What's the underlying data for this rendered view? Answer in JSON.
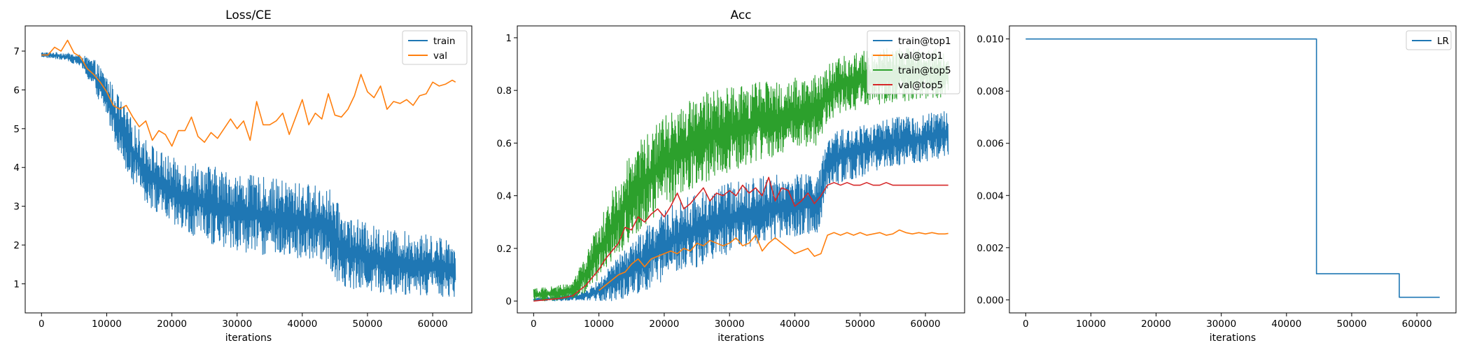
{
  "colors": {
    "c0": "#1f77b4",
    "c1": "#ff7f0e",
    "c2": "#2ca02c",
    "c3": "#d62728"
  },
  "chart_data": [
    {
      "type": "line",
      "title": "Loss/CE",
      "xlabel": "iterations",
      "ylabel": "",
      "xlim": [
        -2500,
        66000
      ],
      "ylim": [
        0.25,
        7.65
      ],
      "xticks": [
        0,
        10000,
        20000,
        30000,
        40000,
        50000,
        60000
      ],
      "yticks": [
        1,
        2,
        3,
        4,
        5,
        6,
        7
      ],
      "legend": "top-right",
      "grid": false,
      "series": [
        {
          "name": "train",
          "color": "#1f77b4",
          "style": "noisy-band",
          "x": [
            0,
            2000,
            4000,
            6000,
            8000,
            10000,
            12000,
            14000,
            16000,
            18000,
            20000,
            22000,
            24000,
            26000,
            28000,
            30000,
            32000,
            34000,
            36000,
            38000,
            40000,
            42000,
            44000,
            44600,
            46000,
            48000,
            50000,
            52000,
            54000,
            56000,
            58000,
            60000,
            62000,
            63500
          ],
          "upper": [
            6.97,
            6.97,
            6.95,
            6.9,
            6.8,
            6.4,
            5.8,
            5.2,
            4.75,
            4.45,
            4.25,
            4.2,
            4.15,
            4.05,
            3.95,
            3.85,
            3.8,
            3.75,
            3.7,
            3.65,
            3.6,
            3.55,
            3.5,
            3.35,
            2.9,
            2.7,
            2.55,
            2.45,
            2.4,
            2.35,
            2.3,
            2.25,
            2.2,
            2.1
          ],
          "lower": [
            6.85,
            6.8,
            6.75,
            6.6,
            6.0,
            5.3,
            4.3,
            3.6,
            3.1,
            2.75,
            2.45,
            2.25,
            2.1,
            2.0,
            1.9,
            1.85,
            1.8,
            1.75,
            1.7,
            1.65,
            1.6,
            1.55,
            1.5,
            1.2,
            0.95,
            0.85,
            0.8,
            0.75,
            0.72,
            0.7,
            0.7,
            0.68,
            0.67,
            0.66
          ]
        },
        {
          "name": "val",
          "color": "#ff7f0e",
          "x": [
            0,
            1000,
            2000,
            3000,
            4000,
            5000,
            6000,
            7000,
            8000,
            9000,
            10000,
            11000,
            12000,
            13000,
            14000,
            15000,
            16000,
            17000,
            18000,
            19000,
            20000,
            21000,
            22000,
            23000,
            24000,
            25000,
            26000,
            27000,
            28000,
            29000,
            30000,
            31000,
            32000,
            33000,
            34000,
            35000,
            36000,
            37000,
            38000,
            39000,
            40000,
            41000,
            42000,
            43000,
            44000,
            45000,
            46000,
            47000,
            48000,
            49000,
            50000,
            51000,
            52000,
            53000,
            54000,
            55000,
            56000,
            57000,
            58000,
            59000,
            60000,
            61000,
            62000,
            63000,
            63500
          ],
          "y": [
            6.9,
            6.9,
            7.1,
            7.0,
            7.28,
            6.95,
            6.85,
            6.55,
            6.4,
            6.2,
            5.95,
            5.6,
            5.5,
            5.6,
            5.3,
            5.05,
            5.2,
            4.7,
            4.95,
            4.85,
            4.55,
            4.95,
            4.95,
            5.3,
            4.8,
            4.65,
            4.9,
            4.75,
            5.0,
            5.25,
            5.0,
            5.2,
            4.7,
            5.7,
            5.1,
            5.1,
            5.2,
            5.4,
            4.85,
            5.3,
            5.75,
            5.1,
            5.4,
            5.25,
            5.9,
            5.35,
            5.3,
            5.5,
            5.85,
            6.4,
            5.95,
            5.8,
            6.1,
            5.5,
            5.7,
            5.65,
            5.75,
            5.6,
            5.85,
            5.9,
            6.2,
            6.1,
            6.15,
            6.25,
            6.2
          ]
        }
      ]
    },
    {
      "type": "line",
      "title": "Acc",
      "xlabel": "iterations",
      "ylabel": "",
      "xlim": [
        -2500,
        66000
      ],
      "ylim": [
        -0.045,
        1.045
      ],
      "xticks": [
        0,
        10000,
        20000,
        30000,
        40000,
        50000,
        60000
      ],
      "yticks": [
        0.0,
        0.2,
        0.4,
        0.6,
        0.8,
        1.0
      ],
      "legend": "top-right",
      "grid": false,
      "series": [
        {
          "name": "train@top1",
          "color": "#1f77b4",
          "style": "noisy-band",
          "x": [
            0,
            4000,
            8000,
            10000,
            12000,
            14000,
            16000,
            18000,
            20000,
            22000,
            24000,
            26000,
            28000,
            30000,
            32000,
            34000,
            36000,
            38000,
            40000,
            42000,
            44000,
            44600,
            46000,
            48000,
            50000,
            52000,
            54000,
            56000,
            58000,
            60000,
            62000,
            63500
          ],
          "upper": [
            0.01,
            0.02,
            0.04,
            0.08,
            0.14,
            0.2,
            0.25,
            0.3,
            0.34,
            0.38,
            0.4,
            0.42,
            0.44,
            0.45,
            0.46,
            0.47,
            0.48,
            0.48,
            0.48,
            0.49,
            0.5,
            0.6,
            0.64,
            0.66,
            0.67,
            0.68,
            0.69,
            0.7,
            0.7,
            0.71,
            0.72,
            0.72
          ],
          "lower": [
            0.0,
            0.0,
            0.0,
            0.0,
            0.0,
            0.01,
            0.03,
            0.05,
            0.08,
            0.1,
            0.12,
            0.14,
            0.16,
            0.18,
            0.2,
            0.21,
            0.22,
            0.23,
            0.24,
            0.25,
            0.26,
            0.4,
            0.44,
            0.46,
            0.47,
            0.49,
            0.5,
            0.51,
            0.52,
            0.53,
            0.54,
            0.55
          ]
        },
        {
          "name": "val@top1",
          "color": "#ff7f0e",
          "x": [
            10000,
            11000,
            12000,
            13000,
            14000,
            15000,
            16000,
            17000,
            18000,
            19000,
            20000,
            21000,
            22000,
            23000,
            24000,
            25000,
            26000,
            27000,
            28000,
            29000,
            30000,
            31000,
            32000,
            33000,
            34000,
            35000,
            36000,
            37000,
            38000,
            39000,
            40000,
            41000,
            42000,
            43000,
            44000,
            45000,
            46000,
            47000,
            48000,
            49000,
            50000,
            51000,
            52000,
            53000,
            54000,
            55000,
            56000,
            57000,
            58000,
            59000,
            60000,
            61000,
            62000,
            63000,
            63500
          ],
          "y": [
            0.04,
            0.06,
            0.08,
            0.1,
            0.11,
            0.14,
            0.16,
            0.13,
            0.16,
            0.17,
            0.18,
            0.19,
            0.18,
            0.2,
            0.19,
            0.22,
            0.21,
            0.23,
            0.22,
            0.21,
            0.22,
            0.24,
            0.21,
            0.22,
            0.25,
            0.19,
            0.22,
            0.24,
            0.22,
            0.2,
            0.18,
            0.19,
            0.2,
            0.17,
            0.18,
            0.25,
            0.26,
            0.25,
            0.26,
            0.25,
            0.26,
            0.25,
            0.255,
            0.26,
            0.25,
            0.255,
            0.27,
            0.26,
            0.255,
            0.26,
            0.255,
            0.26,
            0.255,
            0.255,
            0.257
          ]
        },
        {
          "name": "train@top5",
          "color": "#2ca02c",
          "style": "noisy-band",
          "x": [
            0,
            4000,
            6000,
            8000,
            10000,
            12000,
            14000,
            16000,
            18000,
            20000,
            22000,
            24000,
            26000,
            28000,
            30000,
            32000,
            34000,
            36000,
            38000,
            40000,
            42000,
            44000,
            44600,
            46000,
            48000,
            50000,
            52000,
            54000,
            56000,
            58000,
            60000,
            62000,
            63500
          ],
          "upper": [
            0.05,
            0.06,
            0.08,
            0.18,
            0.3,
            0.42,
            0.52,
            0.6,
            0.66,
            0.7,
            0.74,
            0.77,
            0.79,
            0.8,
            0.81,
            0.82,
            0.83,
            0.84,
            0.84,
            0.85,
            0.86,
            0.86,
            0.9,
            0.93,
            0.94,
            0.95,
            0.95,
            0.96,
            0.96,
            0.96,
            0.96,
            0.96,
            0.96
          ],
          "lower": [
            0.0,
            0.0,
            0.01,
            0.03,
            0.08,
            0.14,
            0.2,
            0.26,
            0.31,
            0.35,
            0.39,
            0.42,
            0.45,
            0.47,
            0.49,
            0.51,
            0.53,
            0.54,
            0.55,
            0.56,
            0.57,
            0.58,
            0.66,
            0.7,
            0.72,
            0.73,
            0.74,
            0.75,
            0.76,
            0.76,
            0.77,
            0.77,
            0.78
          ]
        },
        {
          "name": "val@top5",
          "color": "#d62728",
          "x": [
            0,
            2000,
            4000,
            6000,
            7000,
            8000,
            9000,
            10000,
            11000,
            12000,
            13000,
            14000,
            15000,
            16000,
            17000,
            18000,
            19000,
            20000,
            21000,
            22000,
            23000,
            24000,
            25000,
            26000,
            27000,
            28000,
            29000,
            30000,
            31000,
            32000,
            33000,
            34000,
            35000,
            36000,
            37000,
            38000,
            39000,
            40000,
            41000,
            42000,
            43000,
            44000,
            45000,
            46000,
            47000,
            48000,
            49000,
            50000,
            51000,
            52000,
            53000,
            54000,
            55000,
            56000,
            57000,
            58000,
            59000,
            60000,
            61000,
            62000,
            63000,
            63500
          ],
          "y": [
            0.0,
            0.005,
            0.01,
            0.02,
            0.04,
            0.06,
            0.09,
            0.12,
            0.16,
            0.19,
            0.22,
            0.28,
            0.27,
            0.32,
            0.3,
            0.33,
            0.35,
            0.32,
            0.36,
            0.41,
            0.35,
            0.37,
            0.4,
            0.43,
            0.38,
            0.41,
            0.4,
            0.42,
            0.4,
            0.44,
            0.41,
            0.43,
            0.4,
            0.47,
            0.38,
            0.43,
            0.42,
            0.36,
            0.38,
            0.41,
            0.37,
            0.4,
            0.44,
            0.45,
            0.44,
            0.45,
            0.44,
            0.44,
            0.45,
            0.44,
            0.44,
            0.45,
            0.44,
            0.44,
            0.44,
            0.44,
            0.44,
            0.44,
            0.44,
            0.44,
            0.44,
            0.44
          ]
        }
      ]
    },
    {
      "type": "line",
      "title": "",
      "xlabel": "iterations",
      "ylabel": "",
      "xlim": [
        -2500,
        66000
      ],
      "ylim": [
        -0.0005,
        0.0105
      ],
      "xticks": [
        0,
        10000,
        20000,
        30000,
        40000,
        50000,
        60000
      ],
      "yticks": [
        0.0,
        0.002,
        0.004,
        0.006,
        0.008,
        0.01
      ],
      "ytick_labels": [
        "0.000",
        "0.002",
        "0.004",
        "0.006",
        "0.008",
        "0.010"
      ],
      "legend": "top-right",
      "grid": false,
      "series": [
        {
          "name": "LR",
          "color": "#1f77b4",
          "step": true,
          "x": [
            0,
            44600,
            44600,
            57300,
            57300,
            63500
          ],
          "y": [
            0.01,
            0.01,
            0.001,
            0.001,
            0.0001,
            0.0001
          ]
        }
      ]
    }
  ]
}
